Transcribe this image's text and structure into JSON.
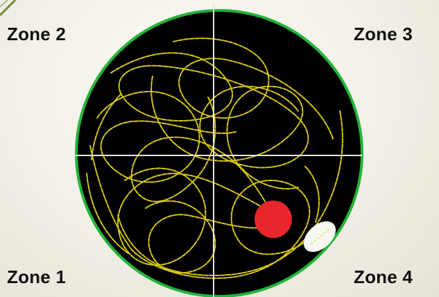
{
  "zones": {
    "zone1": "Zone 1",
    "zone2": "Zone 2",
    "zone3": "Zone 3",
    "zone4": "Zone 4"
  },
  "colors": {
    "arena_fill": "#000000",
    "arena_rim": "#22b43a",
    "crosshair": "#e8e8e8",
    "track": "#e3d21c",
    "red_marker": "#e8262b",
    "white_marker": "#f7f7f2",
    "corner_accent": "#6f8a3a"
  },
  "markers": [
    "red-dot",
    "white-oval"
  ]
}
